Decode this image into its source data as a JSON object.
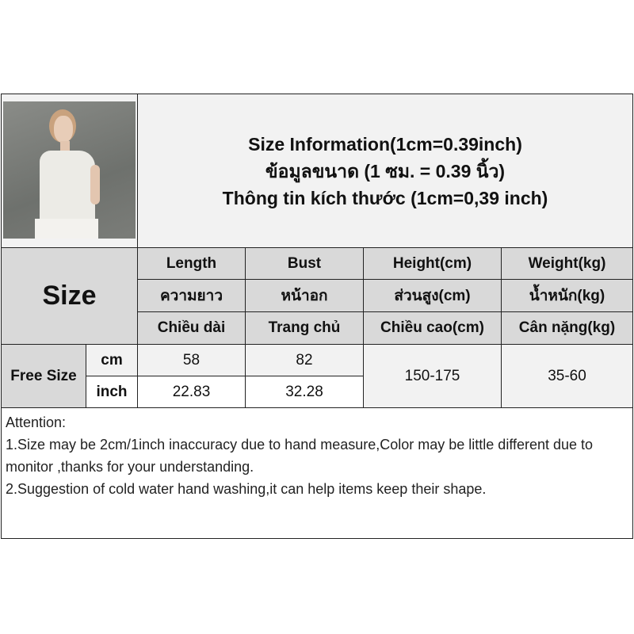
{
  "photo": {
    "alt_icon": "product-model-photo"
  },
  "title": {
    "line1": "Size Information(1cm=0.39inch)",
    "line2": "ข้อมูลขนาด (1 ซม. = 0.39 นิ้ว)",
    "line3": "Thông tin kích thước (1cm=0,39 inch)"
  },
  "table": {
    "size_label": "Size",
    "columns": [
      {
        "en": "Length",
        "th": "ความยาว",
        "vi": "Chiều dài"
      },
      {
        "en": "Bust",
        "th": "หน้าอก",
        "vi": "Trang chủ"
      },
      {
        "en": "Height(cm)",
        "th": "ส่วนสูง(cm)",
        "vi": "Chiều cao(cm)"
      },
      {
        "en": "Weight(kg)",
        "th": "น้ำหนัก(kg)",
        "vi": "Cân nặng(kg)"
      }
    ],
    "row_label": "Free Size",
    "units": [
      "cm",
      "inch"
    ],
    "cm_values": [
      "58",
      "82"
    ],
    "inch_values": [
      "22.83",
      "32.28"
    ],
    "height_range": "150-175",
    "weight_range": "35-60"
  },
  "attention": {
    "heading": "Attention:",
    "line1": "1.Size may be 2cm/1inch inaccuracy due to hand measure,Color may be little different due to monitor ,thanks for your understanding.",
    "line2": "2.Suggestion of cold water hand washing,it can help items keep their shape."
  }
}
